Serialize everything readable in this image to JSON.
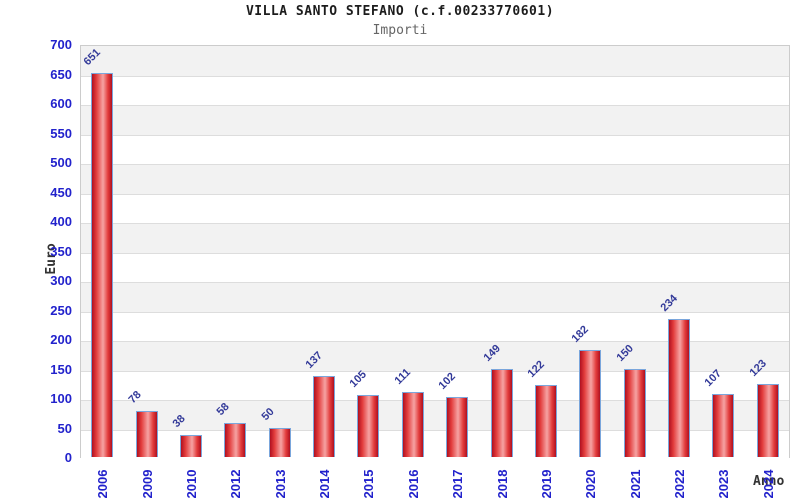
{
  "header": {
    "title": "VILLA SANTO STEFANO (c.f.00233770601)",
    "subtitle": "Importi"
  },
  "chart_data": {
    "type": "bar",
    "title": "VILLA SANTO STEFANO (c.f.00233770601)",
    "subtitle": "Importi",
    "xlabel": "Anno",
    "ylabel": "Euro",
    "categories": [
      "2006",
      "2009",
      "2010",
      "2012",
      "2013",
      "2014",
      "2015",
      "2016",
      "2017",
      "2018",
      "2019",
      "2020",
      "2021",
      "2022",
      "2023",
      "2024"
    ],
    "values": [
      651,
      78,
      38,
      58,
      50,
      137,
      105,
      111,
      102,
      149,
      122,
      182,
      150,
      234,
      107,
      123
    ],
    "ylim": [
      0,
      700
    ],
    "ytick_step": 50,
    "legend": null,
    "grid": "horizontal-bands-alternating",
    "colors": {
      "tick_label": "#2222cc",
      "value_label": "#333a99",
      "title": "#1c1c1c",
      "subtitle": "#666666",
      "axis_label": "#333333",
      "band_gray": "#f2f2f2",
      "gridline": "#dddddd",
      "plot_border": "#cccccc",
      "bar_dark": "#b01020",
      "bar_mid": "#e23c3c",
      "bar_light": "#f6a3a3",
      "bar_edge": "#7aa6dc"
    }
  }
}
